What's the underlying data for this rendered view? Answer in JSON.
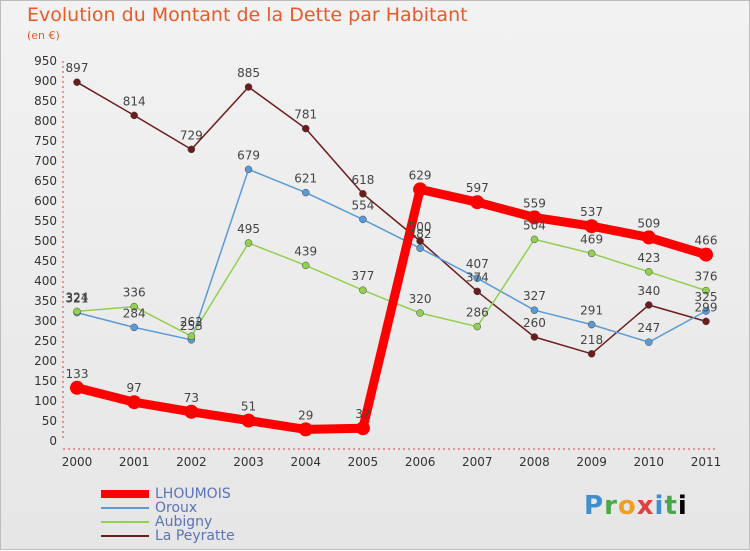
{
  "chart_data": {
    "type": "line",
    "title": "Evolution du Montant de la Dette par Habitant",
    "subtitle": "(en €)",
    "x": [
      "2000",
      "2001",
      "2002",
      "2003",
      "2004",
      "2005",
      "2006",
      "2007",
      "2008",
      "2009",
      "2010",
      "2011"
    ],
    "ylim": [
      0,
      950
    ],
    "yticks": [
      0,
      50,
      100,
      150,
      200,
      250,
      300,
      350,
      400,
      450,
      500,
      550,
      600,
      650,
      700,
      750,
      800,
      850,
      900,
      950
    ],
    "grid": false,
    "legend_position": "bottom-left",
    "series": [
      {
        "name": "LHOUMOIS",
        "color": "#ff0000",
        "values": [
          133,
          97,
          73,
          51,
          29,
          32,
          629,
          597,
          559,
          537,
          509,
          466
        ]
      },
      {
        "name": "Oroux",
        "color": "#5b9bd5",
        "values": [
          321,
          284,
          253,
          679,
          621,
          554,
          482,
          407,
          327,
          291,
          247,
          325
        ]
      },
      {
        "name": "Aubigny",
        "color": "#92d050",
        "values": [
          324,
          336,
          262,
          495,
          439,
          377,
          320,
          286,
          504,
          469,
          423,
          376
        ]
      },
      {
        "name": "La Peyratte",
        "color": "#6b1c1c",
        "values": [
          897,
          814,
          729,
          885,
          781,
          618,
          500,
          374,
          260,
          218,
          340,
          299
        ]
      }
    ]
  },
  "brand": {
    "letters": [
      "P",
      "r",
      "o",
      "x",
      "i",
      "t",
      "i"
    ]
  }
}
